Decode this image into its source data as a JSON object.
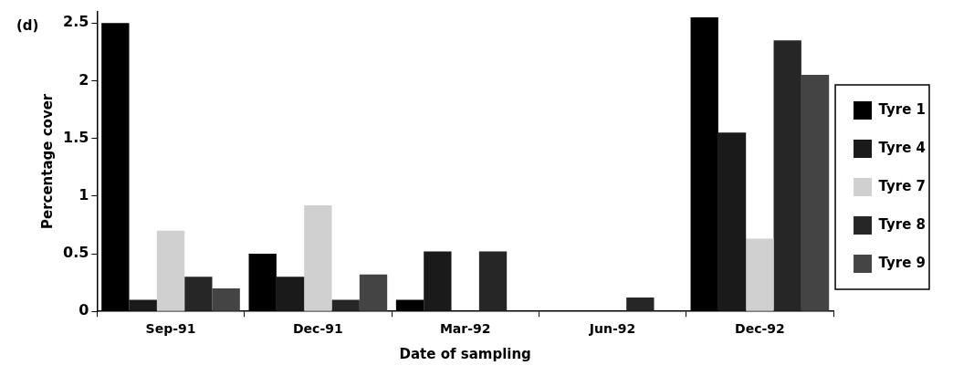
{
  "chart_data": {
    "type": "bar",
    "title": "(d)",
    "xlabel": "Date of sampling",
    "ylabel": "Percentage cover",
    "categories": [
      "Sep-91",
      "Dec-91",
      "Mar-92",
      "Jun-92",
      "Dec-92"
    ],
    "series": [
      {
        "name": "Tyre 1",
        "color": "#000000",
        "values": [
          2.5,
          0.5,
          0.1,
          0,
          2.55
        ]
      },
      {
        "name": "Tyre 4",
        "color": "#1a1a1a",
        "values": [
          0.1,
          0.3,
          0.52,
          0,
          1.55
        ]
      },
      {
        "name": "Tyre 7",
        "color": "#d0d0d0",
        "values": [
          0.7,
          0.92,
          0,
          0,
          0.63
        ]
      },
      {
        "name": "Tyre 8",
        "color": "#262626",
        "values": [
          0.3,
          0.1,
          0.52,
          0.12,
          2.35
        ]
      },
      {
        "name": "Tyre 9",
        "color": "#444444",
        "values": [
          0.2,
          0.32,
          0,
          0,
          2.05
        ]
      }
    ],
    "ylim": [
      0,
      2.6
    ],
    "yticks": [
      0,
      0.5,
      1,
      1.5,
      2,
      2.5
    ],
    "grid": false,
    "legend": "right"
  }
}
